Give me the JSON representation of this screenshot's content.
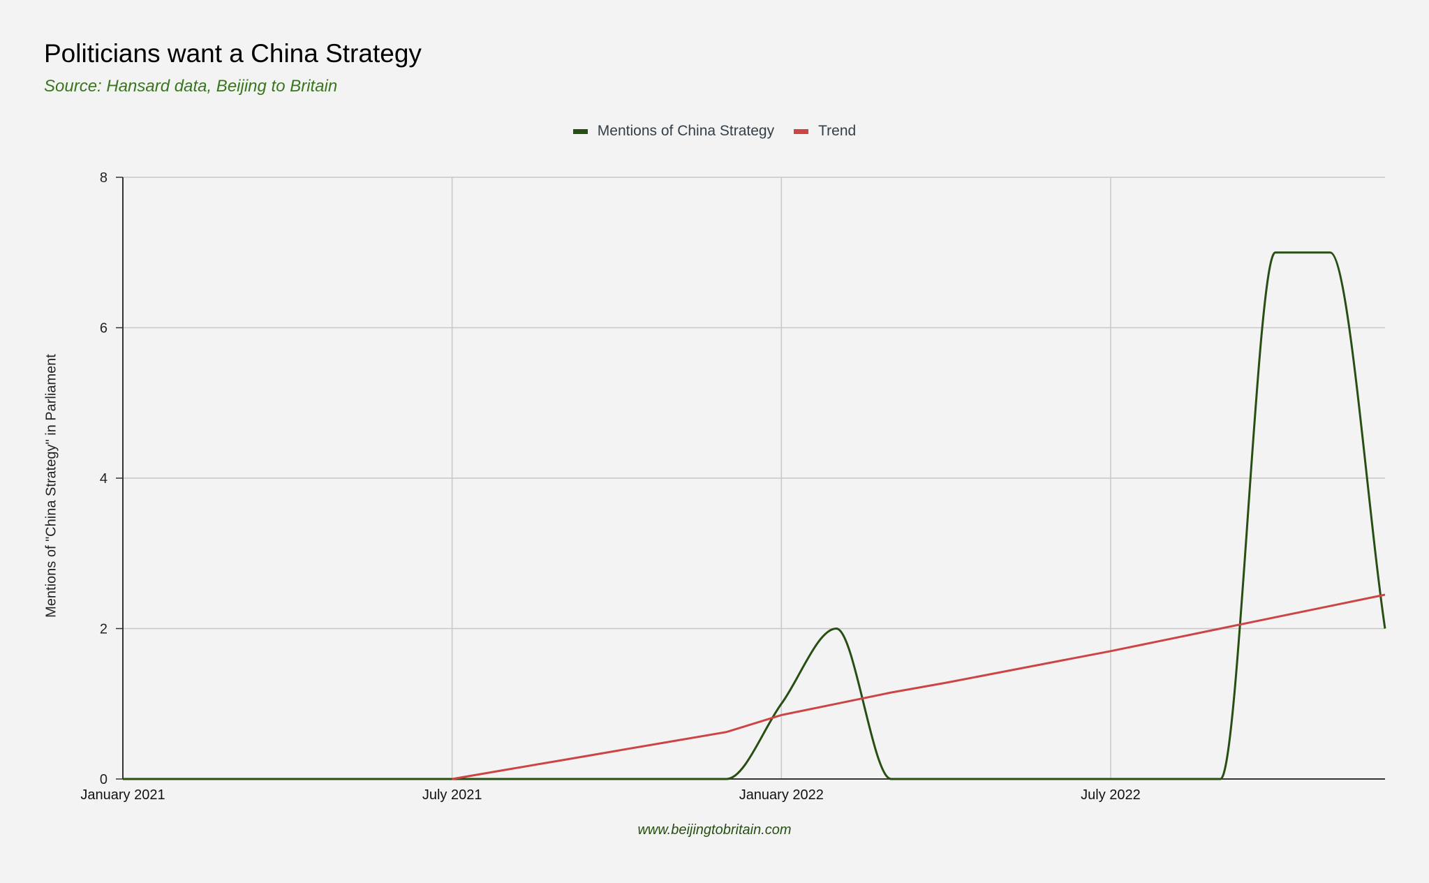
{
  "title": "Politicians want a China Strategy",
  "subtitle": "Source: Hansard data, Beijing to Britain",
  "footer": "www.beijingtobritain.com",
  "colors": {
    "accent_green": "#38761d",
    "series_line": "#274e13",
    "trend_line": "#cc4444",
    "grid": "#c8c8c8",
    "axis": "#333333",
    "background": "#f3f3f3"
  },
  "chart_data": {
    "type": "line",
    "title": "Politicians want a China Strategy",
    "subtitle": "Source: Hansard data, Beijing to Britain",
    "xlabel": "",
    "ylabel": "Mentions of \"China Strategy\" in Parliament",
    "ylim": [
      0,
      8
    ],
    "yticks": [
      "0",
      "2",
      "4",
      "6",
      "8"
    ],
    "xtick_labels": [
      "January 2021",
      "July 2021",
      "January 2022",
      "July 2022"
    ],
    "x": [
      "2021-01",
      "2021-02",
      "2021-03",
      "2021-04",
      "2021-05",
      "2021-06",
      "2021-07",
      "2021-08",
      "2021-09",
      "2021-10",
      "2021-11",
      "2021-12",
      "2022-01",
      "2022-02",
      "2022-03",
      "2022-04",
      "2022-05",
      "2022-06",
      "2022-07",
      "2022-08",
      "2022-09",
      "2022-10",
      "2022-11",
      "2022-12"
    ],
    "series": [
      {
        "name": "Mentions of China Strategy",
        "color": "#274e13",
        "smooth": true,
        "values": [
          0,
          0,
          0,
          0,
          0,
          0,
          0,
          0,
          0,
          0,
          0,
          0,
          1,
          2,
          0,
          0,
          0,
          0,
          0,
          0,
          0,
          7,
          7,
          2
        ]
      },
      {
        "name": "Trend",
        "color": "#cc4444",
        "values": [
          null,
          null,
          null,
          null,
          null,
          null,
          0,
          0.125,
          0.25,
          0.375,
          0.5,
          0.625,
          0.85,
          1.0,
          1.15,
          1.28,
          1.42,
          1.56,
          1.7,
          1.85,
          2.0,
          2.15,
          2.3,
          2.45
        ]
      }
    ],
    "legend": "top-center",
    "grid": true
  }
}
